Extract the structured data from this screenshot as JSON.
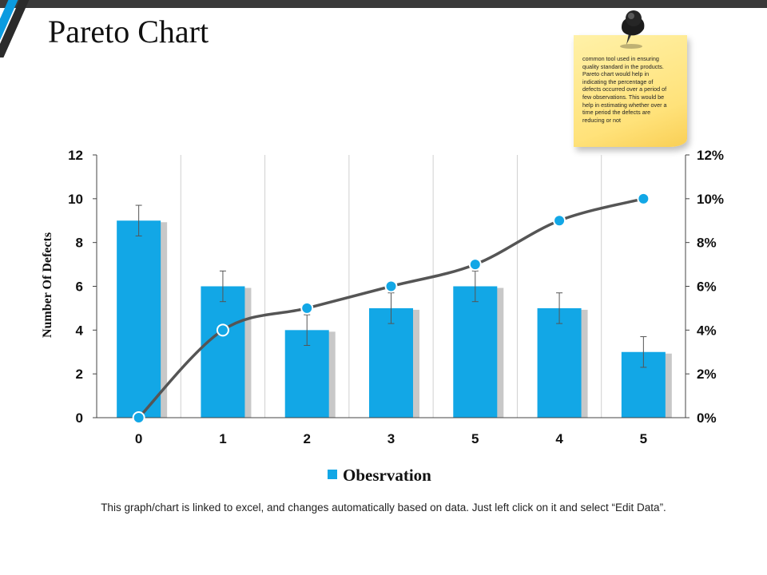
{
  "slide": {
    "title": "Pareto Chart",
    "note": "common tool used in ensuring quality standard in the products. Pareto chart would help in indicating the percentage of defects occurred over a period of few observations. This would be help in estimating whether over a time period the defects are reducing or not",
    "footer": "This graph/chart is linked to excel, and changes automatically based on data. Just left click on it and select “Edit Data”.",
    "accent_color": "#0b9be0"
  },
  "chart_data": {
    "type": "bar",
    "categories": [
      "0",
      "1",
      "2",
      "3",
      "5",
      "4",
      "5"
    ],
    "series": [
      {
        "name": "Obesrvation",
        "kind": "bar",
        "axis": "left",
        "values": [
          9,
          6,
          4,
          5,
          6,
          5,
          3
        ],
        "error": [
          0.7,
          0.7,
          0.7,
          0.7,
          0.7,
          0.7,
          0.7
        ],
        "color": "#12a7e6"
      },
      {
        "kind": "line",
        "axis": "right",
        "values": [
          0,
          4,
          5,
          6,
          7,
          9,
          10
        ],
        "color": "#555555",
        "marker_color": "#12a7e6"
      }
    ],
    "ylabel": "Number Of Defects",
    "ylim": [
      0,
      12
    ],
    "yticks": [
      "0",
      "2",
      "4",
      "6",
      "8",
      "10",
      "12"
    ],
    "y2lim": [
      0,
      12
    ],
    "y2ticks": [
      "0%",
      "2%",
      "4%",
      "6%",
      "8%",
      "10%",
      "12%"
    ],
    "grid": "vertical",
    "legend": "bottom"
  }
}
